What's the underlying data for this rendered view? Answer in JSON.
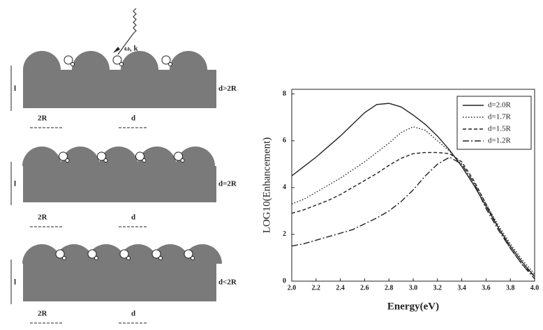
{
  "diagram": {
    "incident_label": "ω, k",
    "panels": [
      {
        "condition": "d>2R",
        "thickness_label": "l",
        "radius_label": "2R",
        "spacing_label": "d"
      },
      {
        "condition": "d=2R",
        "thickness_label": "l",
        "radius_label": "2R",
        "spacing_label": "d"
      },
      {
        "condition": "d<2R",
        "thickness_label": "l",
        "radius_label": "2R",
        "spacing_label": "d"
      }
    ]
  },
  "chart_data": {
    "type": "line",
    "xlabel": "Energy(eV)",
    "ylabel": "LOG10(Enhancement)",
    "x": [
      2.0,
      2.1,
      2.2,
      2.3,
      2.4,
      2.5,
      2.6,
      2.7,
      2.8,
      2.9,
      3.0,
      3.1,
      3.2,
      3.3,
      3.4,
      3.5,
      3.6,
      3.7,
      3.8,
      3.9,
      4.0
    ],
    "series": [
      {
        "name": "d=2.0R",
        "color": "#222222",
        "dash": "solid",
        "values": [
          4.5,
          4.9,
          5.3,
          5.75,
          6.2,
          6.7,
          7.2,
          7.55,
          7.6,
          7.45,
          7.1,
          6.7,
          6.2,
          5.6,
          4.9,
          4.1,
          3.2,
          2.3,
          1.5,
          0.8,
          0.2
        ]
      },
      {
        "name": "d=1.7R",
        "color": "#222222",
        "dash": "dotted",
        "values": [
          3.3,
          3.5,
          3.8,
          4.1,
          4.4,
          4.75,
          5.1,
          5.5,
          5.9,
          6.35,
          6.6,
          6.45,
          6.0,
          5.55,
          5.0,
          4.2,
          3.3,
          2.4,
          1.6,
          0.9,
          0.3
        ]
      },
      {
        "name": "d=1.5R",
        "color": "#222222",
        "dash": "dashed",
        "values": [
          2.9,
          3.05,
          3.25,
          3.45,
          3.7,
          4.0,
          4.3,
          4.6,
          4.95,
          5.25,
          5.45,
          5.5,
          5.5,
          5.45,
          5.1,
          4.3,
          3.3,
          2.3,
          1.4,
          0.7,
          0.2
        ]
      },
      {
        "name": "d=1.2R",
        "color": "#222222",
        "dash": "dashdot",
        "values": [
          1.5,
          1.6,
          1.75,
          1.9,
          2.05,
          2.2,
          2.45,
          2.7,
          3.0,
          3.4,
          3.9,
          4.5,
          5.0,
          5.3,
          5.0,
          4.2,
          3.1,
          2.2,
          1.4,
          0.7,
          0.1
        ]
      }
    ],
    "xlim": [
      2.0,
      4.0
    ],
    "xticks": [
      {
        "value": 2.0,
        "label": "2.0"
      },
      {
        "value": 2.2,
        "label": "2.2"
      },
      {
        "value": 2.4,
        "label": "2.4"
      },
      {
        "value": 2.6,
        "label": "2.6"
      },
      {
        "value": 2.8,
        "label": "2.8"
      },
      {
        "value": 3.0,
        "label": "3.0"
      },
      {
        "value": 3.2,
        "label": "3.2"
      },
      {
        "value": 3.4,
        "label": "3.4"
      },
      {
        "value": 3.6,
        "label": "3.6"
      },
      {
        "value": 3.8,
        "label": "3.8"
      },
      {
        "value": 4.0,
        "label": "4.0"
      }
    ],
    "ylim": [
      0,
      8.2
    ],
    "yticks": [
      0,
      2,
      4,
      6,
      8
    ],
    "legend": "top-right"
  }
}
